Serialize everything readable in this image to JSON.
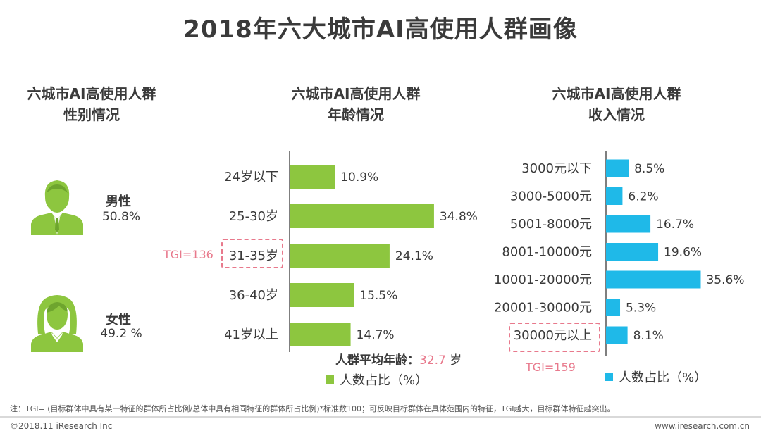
{
  "title": "2018年六大城市AI高使用人群画像",
  "colors": {
    "green": "#8dc63f",
    "blue": "#1fb9e8",
    "pink": "#e8798c",
    "axis": "#555555"
  },
  "gender": {
    "title_line1": "六城市AI高使用人群",
    "title_line2": "性别情况",
    "male": {
      "label": "男性",
      "value": "50.8%",
      "icon": "male-person-icon"
    },
    "female": {
      "label": "女性",
      "value": "49.2 %",
      "icon": "female-person-icon"
    }
  },
  "age": {
    "title_line1": "六城市AI高使用人群",
    "title_line2": "年龄情况",
    "tgi_label": "TGI=136",
    "avg_label": "人群平均年龄",
    "avg_colon": "：",
    "avg_value": "32.7",
    "avg_unit": "岁",
    "legend": "人数占比（%）"
  },
  "income": {
    "title_line1": "六城市AI高使用人群",
    "title_line2": "收入情况",
    "tgi_label": "TGI=159",
    "legend": "人数占比（%）"
  },
  "chart_data": [
    {
      "type": "bar",
      "orientation": "horizontal",
      "title": "六城市AI高使用人群年龄情况",
      "categories": [
        "24岁以下",
        "25-30岁",
        "31-35岁",
        "36-40岁",
        "41岁以上"
      ],
      "values": [
        10.9,
        34.8,
        24.1,
        15.5,
        14.7
      ],
      "value_labels": [
        "10.9%",
        "34.8%",
        "24.1%",
        "15.5%",
        "14.7%"
      ],
      "series_name": "人数占比（%）",
      "highlight_category": "31-35岁",
      "xlim": [
        0,
        36
      ]
    },
    {
      "type": "bar",
      "orientation": "horizontal",
      "title": "六城市AI高使用人群收入情况",
      "categories": [
        "3000元以下",
        "3000-5000元",
        "5001-8000元",
        "8001-10000元",
        "10001-20000元",
        "20001-30000元",
        "30000元以上"
      ],
      "values": [
        8.5,
        6.2,
        16.7,
        19.6,
        35.6,
        5.3,
        8.1
      ],
      "value_labels": [
        "8.5%",
        "6.2%",
        "16.7%",
        "19.6%",
        "35.6%",
        "5.3%",
        "8.1%"
      ],
      "series_name": "人数占比（%）",
      "highlight_category": "30000元以上",
      "xlim": [
        0,
        36
      ]
    }
  ],
  "footnote": "注：TGI= (目标群体中具有某一特征的群体所占比例/总体中具有相同特征的群体所占比例)*标准数100；可反映目标群体在具体范围内的特征，TGI越大，目标群体特征越突出。",
  "footer": {
    "left": "©2018.11 iResearch Inc",
    "right": "www.iresearch.com.cn"
  }
}
